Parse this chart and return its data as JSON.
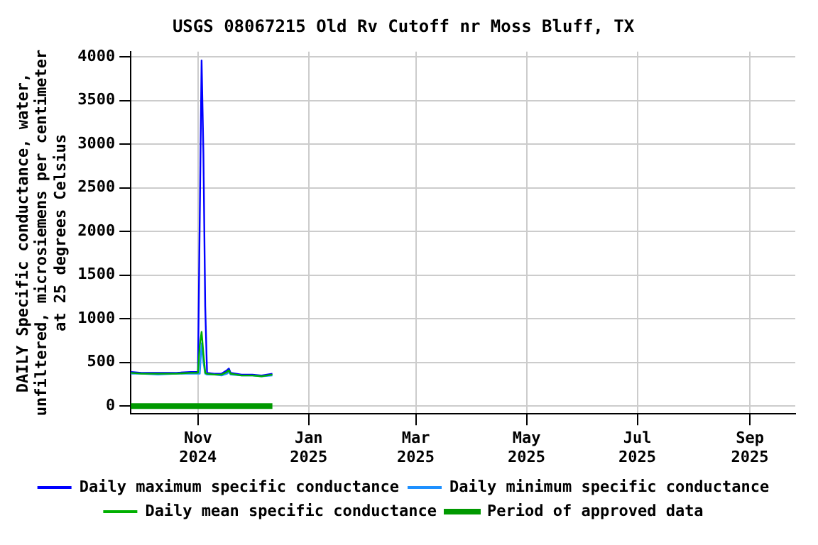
{
  "chart_data": {
    "type": "line",
    "title": "USGS 08067215 Old Rv Cutoff nr Moss Bluff, TX",
    "ylabel": "DAILY Specific conductance, water, unfiltered, microsiemens per centimeter at 25 degrees Celsius",
    "xlim": [
      "2024-09-25",
      "2025-09-26"
    ],
    "xticks": [
      {
        "value": "2024-11-01",
        "label": "Nov 2024"
      },
      {
        "value": "2025-01-01",
        "label": "Jan 2025"
      },
      {
        "value": "2025-03-01",
        "label": "Mar 2025"
      },
      {
        "value": "2025-05-01",
        "label": "May 2025"
      },
      {
        "value": "2025-07-01",
        "label": "Jul 2025"
      },
      {
        "value": "2025-09-01",
        "label": "Sep 2025"
      }
    ],
    "ylim": [
      -90,
      4060
    ],
    "yticks": [
      0,
      500,
      1000,
      1500,
      2000,
      2500,
      3000,
      3500,
      4000
    ],
    "x": [
      "2024-09-25",
      "2024-10-01",
      "2024-10-10",
      "2024-10-20",
      "2024-10-28",
      "2024-11-01",
      "2024-11-02",
      "2024-11-03",
      "2024-11-04",
      "2024-11-05",
      "2024-11-06",
      "2024-11-10",
      "2024-11-14",
      "2024-11-17",
      "2024-11-18",
      "2024-11-19",
      "2024-11-25",
      "2024-12-01",
      "2024-12-06",
      "2024-12-12"
    ],
    "series": [
      {
        "name": "Daily maximum specific conductance",
        "color": "#0000ff",
        "values": [
          390,
          380,
          380,
          380,
          390,
          390,
          2170,
          3960,
          2900,
          1140,
          380,
          370,
          370,
          410,
          430,
          380,
          360,
          360,
          350,
          370
        ]
      },
      {
        "name": "Daily minimum specific conductance",
        "color": "#1e90ff",
        "values": [
          370,
          370,
          360,
          370,
          370,
          370,
          370,
          720,
          500,
          370,
          360,
          360,
          350,
          370,
          390,
          360,
          350,
          350,
          340,
          350
        ]
      },
      {
        "name": "Daily mean specific conductance",
        "color": "#00b000",
        "values": [
          380,
          370,
          370,
          370,
          380,
          380,
          700,
          850,
          600,
          380,
          370,
          360,
          360,
          390,
          410,
          370,
          350,
          350,
          340,
          360
        ]
      },
      {
        "name": "Period of approved data",
        "color": "#009900",
        "x": [
          "2024-09-25",
          "2024-12-12"
        ],
        "values": [
          0,
          0
        ]
      }
    ],
    "grid": true,
    "legend": "bottom",
    "marker": "none",
    "line_style": "solid"
  }
}
